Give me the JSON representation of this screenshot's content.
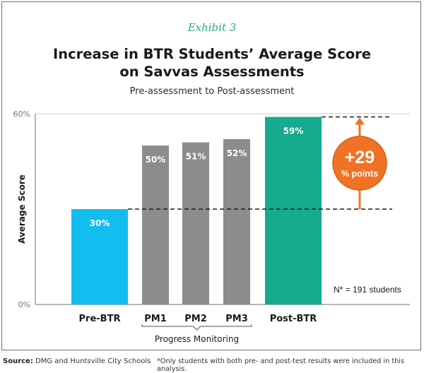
{
  "exhibit_label": "Exhibit 3",
  "title_line1": "Increase in BTR Students’ Average Score",
  "title_line2": "on Savvas Assessments",
  "subtitle": "Pre-assessment to Post-assessment",
  "chart_data": {
    "type": "bar",
    "title": "Increase in BTR Students’ Average Score on Savvas Assessments",
    "subtitle": "Pre-assessment to Post-assessment",
    "xlabel": "",
    "ylabel": "Average Score",
    "ylim": [
      0,
      60
    ],
    "yticks": [
      0,
      60
    ],
    "ytick_labels": [
      "0%",
      "60%"
    ],
    "grid": false,
    "categories": [
      "Pre-BTR",
      "PM1",
      "PM2",
      "PM3",
      "Post-BTR"
    ],
    "values": [
      30,
      50,
      51,
      52,
      59
    ],
    "value_labels": [
      "30%",
      "50%",
      "51%",
      "52%",
      "59%"
    ],
    "bar_colors": [
      "#12bdf0",
      "#8c8c8e",
      "#8c8c8e",
      "#8c8c8e",
      "#15ab8c"
    ],
    "group_bracket": {
      "label": "Progress Monitoring",
      "categories": [
        "PM1",
        "PM2",
        "PM3"
      ]
    },
    "annotations": [
      {
        "type": "difference",
        "from": 30,
        "to": 59,
        "value_text": "+29",
        "unit_text": "% points",
        "color": "#f07224"
      },
      {
        "type": "text",
        "text": "N* = 191 students"
      }
    ]
  },
  "footer": {
    "source_label": "Source:",
    "source_text": "DMG and Huntsville City Schools",
    "note": "*Only students with both pre- and post-test results were included in this analysis."
  }
}
